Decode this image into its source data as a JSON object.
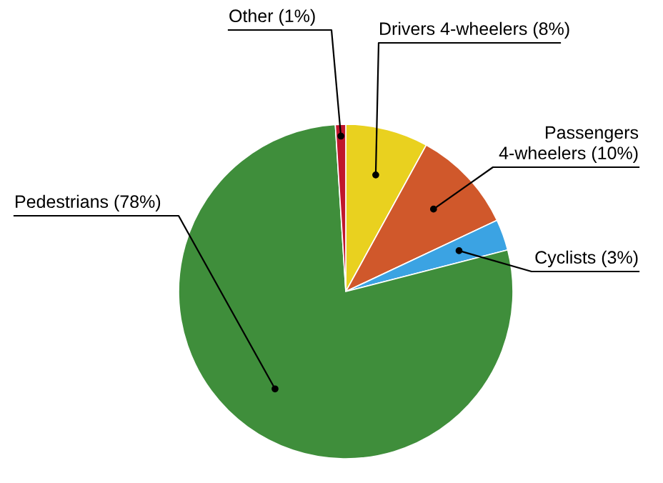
{
  "chart_data": {
    "type": "pie",
    "categories": [
      "Drivers 4-wheelers (8%)",
      "Passengers\n4-wheelers (10%)",
      "Cyclists (3%)",
      "Pedestrians (78%)",
      "Other (1%)"
    ],
    "values": [
      8,
      10,
      3,
      78,
      1
    ],
    "colors": [
      "#e9d11f",
      "#d0582b",
      "#3ba3e3",
      "#3f8e3b",
      "#c0162c"
    ]
  }
}
